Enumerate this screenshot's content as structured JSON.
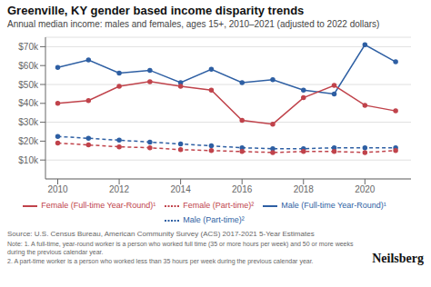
{
  "chart_data": {
    "type": "line",
    "title": "Greenville, KY gender based income disparity trends",
    "subtitle": "Annual median income: males and females, ages 15+, 2010–2021 (adjusted to 2022 dollars)",
    "x": [
      2010,
      2011,
      2012,
      2013,
      2014,
      2015,
      2016,
      2017,
      2018,
      2019,
      2020,
      2021
    ],
    "series": [
      {
        "name": "Male (Full-time Year-Round)¹",
        "color": "#2e5fa3",
        "line_style": "solid",
        "marker": "o",
        "values": [
          59000,
          63000,
          56000,
          57500,
          51000,
          58000,
          51000,
          52500,
          47000,
          45000,
          71000,
          62000
        ]
      },
      {
        "name": "Male (Part-time)²",
        "color": "#2e5fa3",
        "line_style": "dashed",
        "marker": "o",
        "values": [
          22500,
          21500,
          20500,
          19500,
          18500,
          17500,
          16500,
          16000,
          16000,
          16500,
          16500,
          16500
        ]
      },
      {
        "name": "Female (Full-time Year-Round)¹",
        "color": "#c0434b",
        "line_style": "solid",
        "marker": "o",
        "values": [
          40000,
          41500,
          49000,
          51500,
          49000,
          47000,
          31000,
          29000,
          43000,
          49500,
          39000,
          36000
        ]
      },
      {
        "name": "Female (Part-time)²",
        "color": "#c0434b",
        "line_style": "dashed",
        "marker": "o",
        "values": [
          19000,
          18000,
          17000,
          16500,
          15500,
          15000,
          14500,
          14000,
          14500,
          14500,
          14000,
          15000
        ]
      }
    ],
    "xlim": [
      2009.6,
      2021.5
    ],
    "xticks": [
      2010,
      2012,
      2014,
      2016,
      2018,
      2020
    ],
    "ylim": [
      0,
      75000
    ],
    "yticks": [
      {
        "value": 10000,
        "label": "$10k"
      },
      {
        "value": 20000,
        "label": "$20k"
      },
      {
        "value": 30000,
        "label": "$30k"
      },
      {
        "value": 40000,
        "label": "$40k"
      },
      {
        "value": 50000,
        "label": "$50k"
      },
      {
        "value": 60000,
        "label": "$60k"
      },
      {
        "value": 70000,
        "label": "$70k"
      }
    ],
    "grid": true,
    "annotations": [
      "Source: U.S. Census Bureau, American Community Survey (ACS) 2017-2021 5-Year Estimates",
      "Note: 1. A full-time, year-round worker is a person who worked full time (35 or more hours per week) and 50 or more weeks during the previous calendar year.",
      "2. A part-time worker is a person who worked less than 35 hours per week during the previous calendar year.",
      "Neilsberg"
    ]
  }
}
